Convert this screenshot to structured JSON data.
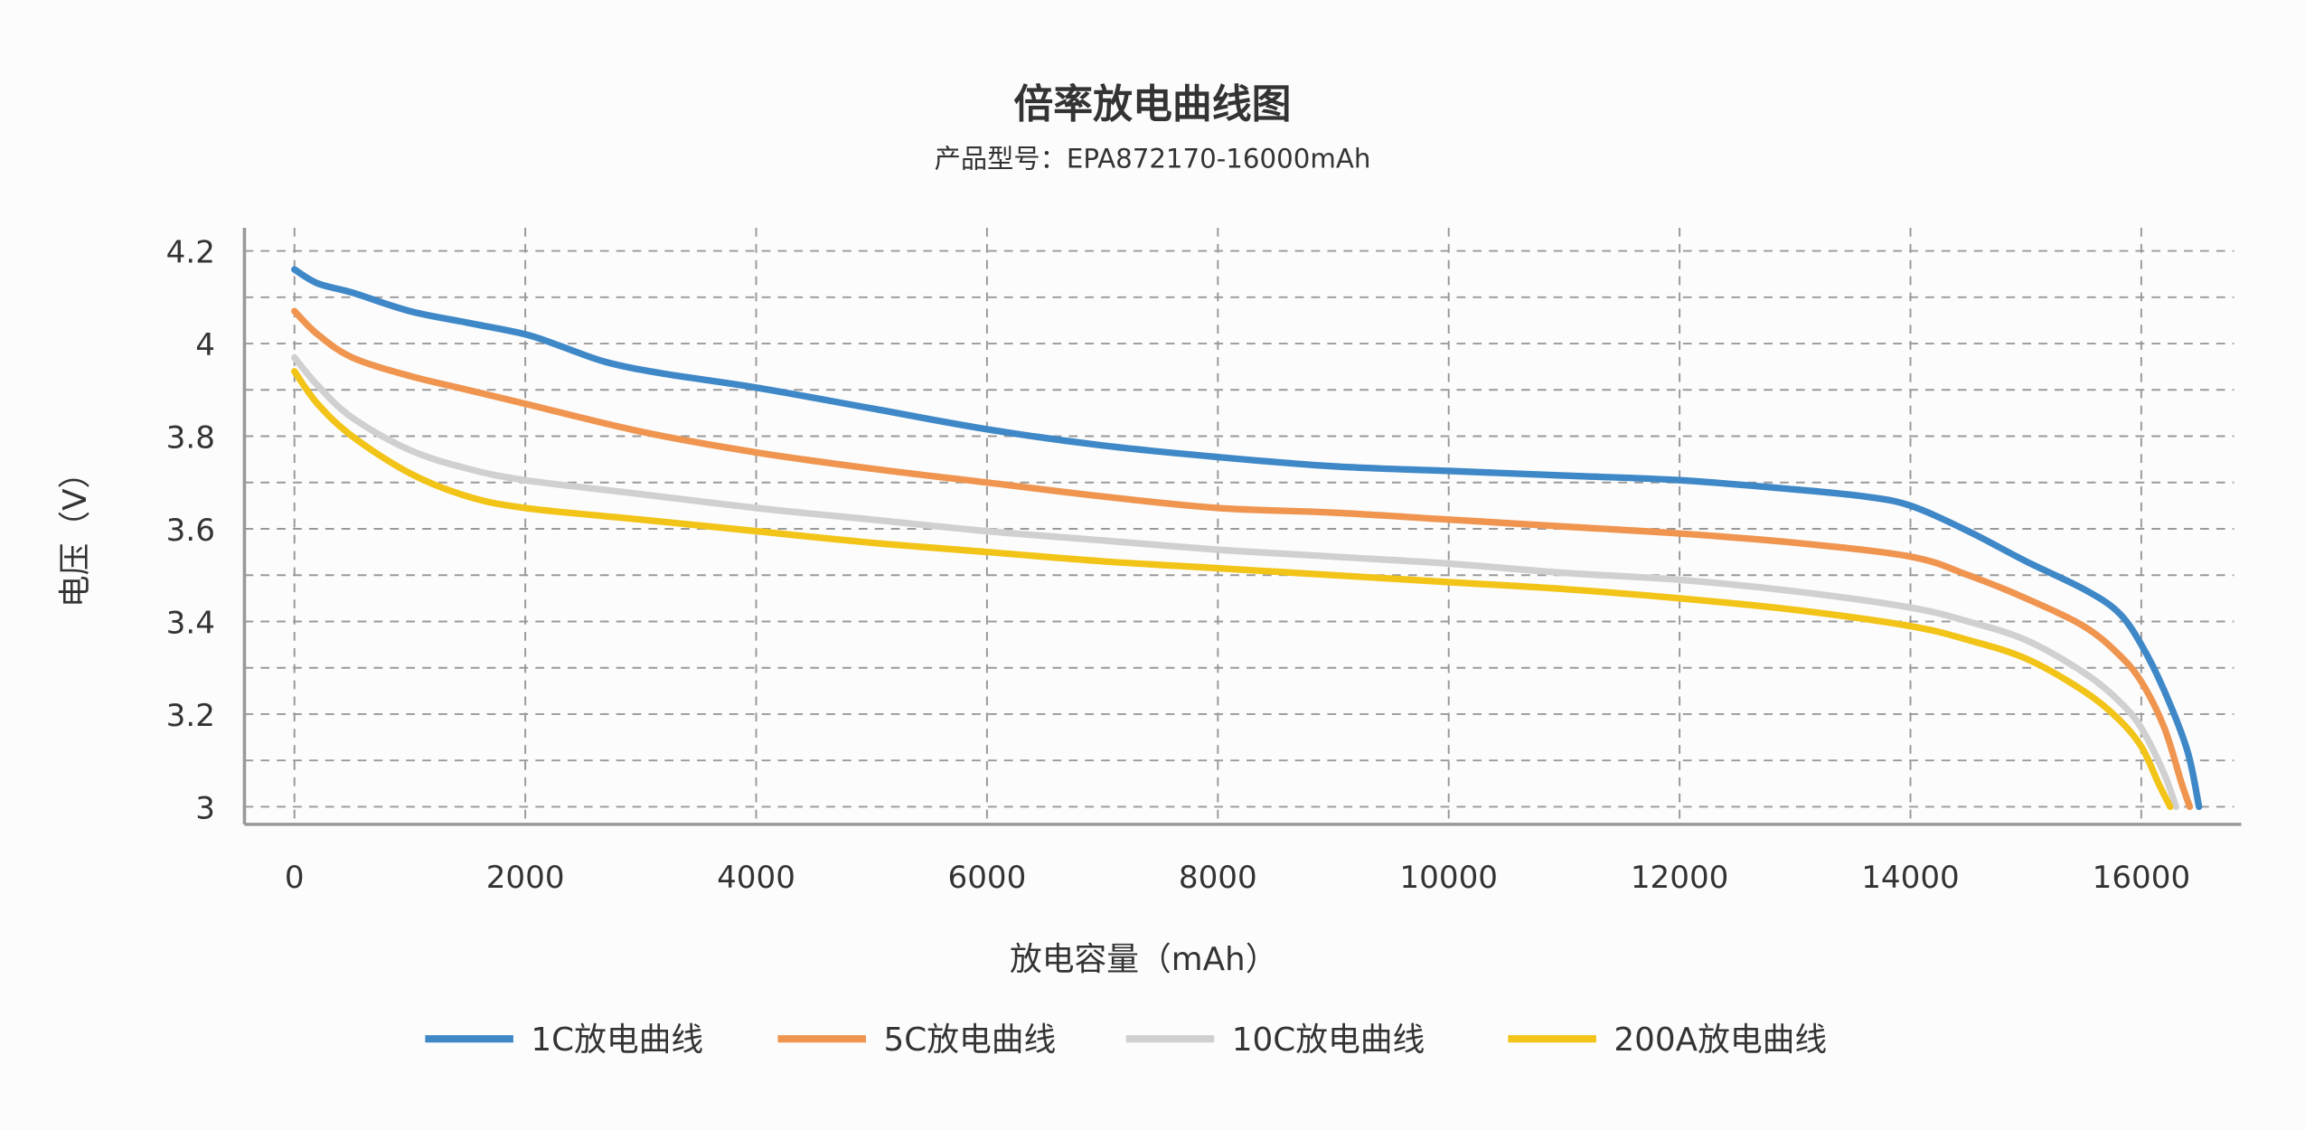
{
  "chart_data": {
    "type": "line",
    "title": "倍率放电曲线图",
    "subtitle": "产品型号：EPA872170-16000mAh",
    "xlabel": "放电容量（mAh）",
    "ylabel": "电压（V）",
    "xlim": [
      -433,
      16866
    ],
    "ylim": [
      2.962,
      4.25
    ],
    "xticks": [
      0,
      2000,
      4000,
      6000,
      8000,
      10000,
      12000,
      14000,
      16000
    ],
    "xtick_labels": [
      "0",
      "2000",
      "4000",
      "6000",
      "8000",
      "10000",
      "12000",
      "14000",
      "16000"
    ],
    "yticks": [
      3,
      3.2,
      3.4,
      3.6,
      3.8,
      4,
      4.2
    ],
    "ytick_labels": [
      "3",
      "3.2",
      "3.4",
      "3.6",
      "3.8",
      "4",
      "4.2"
    ],
    "ygrid_minor": [
      3.1,
      3.3,
      3.5,
      3.7,
      3.9,
      4.1
    ],
    "grid": true,
    "legend_position": "bottom",
    "series": [
      {
        "name": "1C放电曲线",
        "color": "#3f88c8",
        "x": [
          0,
          200,
          500,
          1000,
          1500,
          2000,
          2300,
          2700,
          3200,
          4000,
          5000,
          6000,
          7000,
          8000,
          9000,
          10000,
          11000,
          12000,
          13000,
          13600,
          14000,
          14500,
          15000,
          15500,
          15800,
          16000,
          16200,
          16400,
          16500
        ],
        "y": [
          4.16,
          4.13,
          4.11,
          4.07,
          4.045,
          4.02,
          3.995,
          3.96,
          3.935,
          3.905,
          3.86,
          3.815,
          3.78,
          3.755,
          3.735,
          3.725,
          3.715,
          3.705,
          3.685,
          3.67,
          3.65,
          3.595,
          3.53,
          3.47,
          3.42,
          3.35,
          3.25,
          3.12,
          3.0
        ]
      },
      {
        "name": "5C放电曲线",
        "color": "#f09550",
        "x": [
          0,
          200,
          500,
          1000,
          1500,
          2000,
          3000,
          4000,
          5000,
          6000,
          7000,
          8000,
          9000,
          10000,
          11000,
          12000,
          13000,
          14000,
          14500,
          15000,
          15500,
          15800,
          16000,
          16200,
          16350,
          16420
        ],
        "y": [
          4.07,
          4.02,
          3.97,
          3.93,
          3.9,
          3.87,
          3.81,
          3.765,
          3.73,
          3.7,
          3.67,
          3.645,
          3.635,
          3.62,
          3.605,
          3.59,
          3.57,
          3.54,
          3.5,
          3.45,
          3.39,
          3.33,
          3.27,
          3.17,
          3.05,
          3.0
        ]
      },
      {
        "name": "10C放电曲线",
        "color": "#d0d0d0",
        "x": [
          0,
          200,
          500,
          1000,
          1500,
          2000,
          3000,
          4000,
          5000,
          6000,
          7000,
          8000,
          9000,
          10000,
          11000,
          12000,
          13000,
          14000,
          14500,
          15000,
          15500,
          15800,
          16000,
          16200,
          16300
        ],
        "y": [
          3.97,
          3.91,
          3.84,
          3.77,
          3.73,
          3.705,
          3.675,
          3.645,
          3.62,
          3.595,
          3.575,
          3.555,
          3.54,
          3.525,
          3.505,
          3.49,
          3.465,
          3.43,
          3.4,
          3.36,
          3.29,
          3.23,
          3.17,
          3.07,
          3.0
        ]
      },
      {
        "name": "200A放电曲线",
        "color": "#f2c418",
        "x": [
          0,
          200,
          500,
          1000,
          1500,
          2000,
          3000,
          4000,
          5000,
          6000,
          7000,
          8000,
          9000,
          10000,
          11000,
          12000,
          13000,
          14000,
          14500,
          15000,
          15500,
          15800,
          16000,
          16150,
          16250
        ],
        "y": [
          3.94,
          3.87,
          3.8,
          3.72,
          3.67,
          3.645,
          3.62,
          3.595,
          3.57,
          3.55,
          3.53,
          3.515,
          3.5,
          3.485,
          3.47,
          3.45,
          3.425,
          3.39,
          3.36,
          3.32,
          3.25,
          3.19,
          3.13,
          3.05,
          3.0
        ]
      }
    ]
  }
}
